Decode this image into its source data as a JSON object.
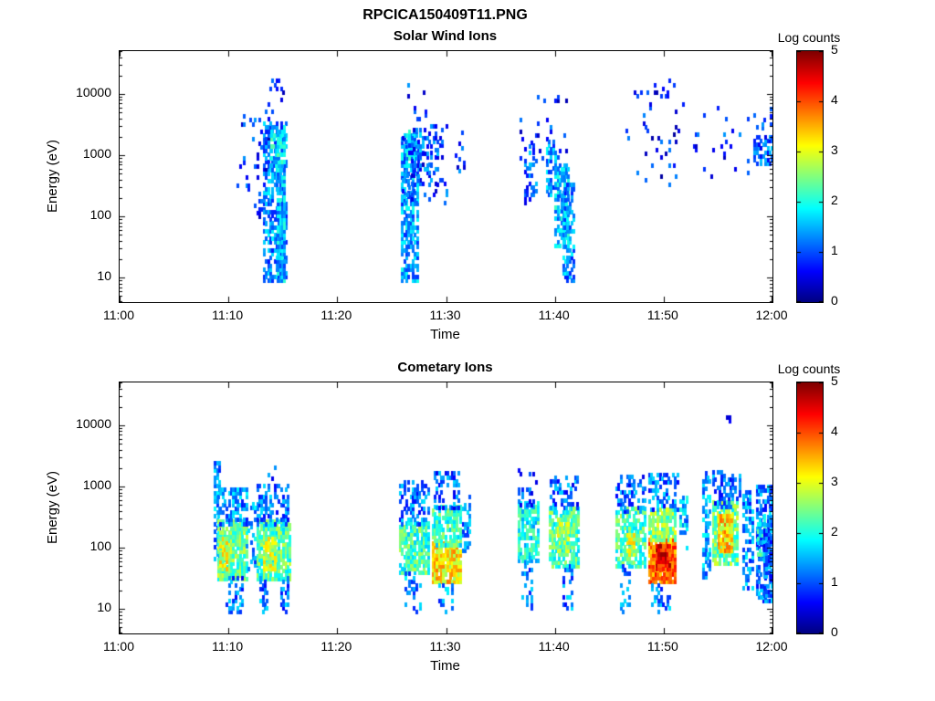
{
  "page": {
    "title": "RPCICA150409T11.PNG"
  },
  "colors": {
    "background": "#ffffff",
    "axis": "#000000",
    "text": "#000000"
  },
  "chart_data": [
    {
      "type": "heatmap",
      "title": "Solar Wind Ions",
      "xlabel": "Time",
      "ylabel": "Energy (eV)",
      "colorbar_label": "Log counts",
      "colormap": "jet",
      "color_range": [
        0,
        5
      ],
      "colorbar_ticks": [
        0,
        1,
        2,
        3,
        4,
        5
      ],
      "x_range_minutes": [
        0,
        60
      ],
      "x_tick_minutes": [
        0,
        10,
        20,
        30,
        40,
        50,
        60
      ],
      "x_tick_labels": [
        "11:00",
        "11:10",
        "11:20",
        "11:30",
        "11:40",
        "11:50",
        "12:00"
      ],
      "y_log_range": [
        4,
        50000
      ],
      "y_tick_values": [
        10,
        100,
        1000,
        10000
      ],
      "y_tick_labels": [
        "10",
        "100",
        "1000",
        "10000"
      ],
      "grid": false,
      "regions_format": "t=[start,end] minutes after 11:00, e=[min,max] eV, v=mean log10 counts, d=fill fraction of bins",
      "regions": [
        {
          "t": [
            10.6,
            13.6
          ],
          "e": [
            250,
            4000
          ],
          "v": 0.8,
          "d": 0.1
        },
        {
          "t": [
            12.4,
            13.4
          ],
          "e": [
            50,
            250
          ],
          "v": 0.9,
          "d": 0.15
        },
        {
          "t": [
            13.2,
            15.3
          ],
          "e": [
            8,
            3000
          ],
          "v": 1.3,
          "d": 0.55
        },
        {
          "t": [
            14.5,
            15.2
          ],
          "e": [
            8,
            2500
          ],
          "v": 1.5,
          "d": 0.85
        },
        {
          "t": [
            13.9,
            15.2
          ],
          "e": [
            600,
            2800
          ],
          "v": 1.8,
          "d": 0.6
        },
        {
          "t": [
            13.4,
            15.3
          ],
          "e": [
            3000,
            15000
          ],
          "v": 0.8,
          "d": 0.12
        },
        {
          "t": [
            25.9,
            27.3
          ],
          "e": [
            8,
            2000
          ],
          "v": 1.4,
          "d": 0.75
        },
        {
          "t": [
            26.2,
            27.6
          ],
          "e": [
            800,
            2300
          ],
          "v": 1.7,
          "d": 0.5
        },
        {
          "t": [
            26.0,
            30.2
          ],
          "e": [
            150,
            3000
          ],
          "v": 0.9,
          "d": 0.15
        },
        {
          "t": [
            26.3,
            28.6
          ],
          "e": [
            3000,
            13000
          ],
          "v": 0.8,
          "d": 0.1
        },
        {
          "t": [
            27.4,
            29.3
          ],
          "e": [
            300,
            2000
          ],
          "v": 1.1,
          "d": 0.3
        },
        {
          "t": [
            30.8,
            31.6
          ],
          "e": [
            500,
            2200
          ],
          "v": 0.9,
          "d": 0.15
        },
        {
          "t": [
            37.2,
            38.3
          ],
          "e": [
            150,
            1300
          ],
          "v": 1.1,
          "d": 0.4
        },
        {
          "t": [
            36.8,
            41.4
          ],
          "e": [
            800,
            10000
          ],
          "v": 0.8,
          "d": 0.09
        },
        {
          "t": [
            39.2,
            40.3
          ],
          "e": [
            200,
            1600
          ],
          "v": 1.3,
          "d": 0.55
        },
        {
          "t": [
            40.0,
            41.3
          ],
          "e": [
            30,
            700
          ],
          "v": 1.6,
          "d": 0.65
        },
        {
          "t": [
            40.7,
            41.9
          ],
          "e": [
            8,
            300
          ],
          "v": 1.3,
          "d": 0.5
        },
        {
          "t": [
            46.5,
            51.8
          ],
          "e": [
            300,
            15000
          ],
          "v": 0.7,
          "d": 0.045
        },
        {
          "t": [
            52.5,
            58.6
          ],
          "e": [
            400,
            6000
          ],
          "v": 0.8,
          "d": 0.055
        },
        {
          "t": [
            58.3,
            60.0
          ],
          "e": [
            650,
            2000
          ],
          "v": 1.1,
          "d": 0.55
        },
        {
          "t": [
            59.0,
            60.0
          ],
          "e": [
            2500,
            5200
          ],
          "v": 0.8,
          "d": 0.18
        }
      ]
    },
    {
      "type": "heatmap",
      "title": "Cometary Ions",
      "xlabel": "Time",
      "ylabel": "Energy (eV)",
      "colorbar_label": "Log counts",
      "colormap": "jet",
      "color_range": [
        0,
        5
      ],
      "colorbar_ticks": [
        0,
        1,
        2,
        3,
        4,
        5
      ],
      "x_range_minutes": [
        0,
        60
      ],
      "x_tick_minutes": [
        0,
        10,
        20,
        30,
        40,
        50,
        60
      ],
      "x_tick_labels": [
        "11:00",
        "11:10",
        "11:20",
        "11:30",
        "11:40",
        "11:50",
        "12:00"
      ],
      "y_log_range": [
        4,
        50000
      ],
      "y_tick_values": [
        10,
        100,
        1000,
        10000
      ],
      "y_tick_labels": [
        "10",
        "100",
        "1000",
        "10000"
      ],
      "grid": false,
      "regions_format": "t=[start,end] minutes after 11:00, e=[min,max] eV, v=mean log10 counts, d=fill fraction of bins",
      "regions": [
        {
          "t": [
            8.7,
            9.2
          ],
          "e": [
            60,
            2300
          ],
          "v": 1.3,
          "d": 0.55
        },
        {
          "t": [
            9.0,
            11.6
          ],
          "e": [
            28,
            260
          ],
          "v": 2.4,
          "d": 0.85
        },
        {
          "t": [
            9.2,
            9.9
          ],
          "e": [
            40,
            130
          ],
          "v": 2.9,
          "d": 0.9
        },
        {
          "t": [
            9.0,
            11.6
          ],
          "e": [
            220,
            900
          ],
          "v": 1.3,
          "d": 0.5
        },
        {
          "t": [
            9.8,
            11.2
          ],
          "e": [
            8,
            30
          ],
          "v": 1.2,
          "d": 0.35
        },
        {
          "t": [
            11.6,
            12.6
          ],
          "e": [
            40,
            500
          ],
          "v": 1.4,
          "d": 0.25
        },
        {
          "t": [
            12.6,
            15.6
          ],
          "e": [
            28,
            260
          ],
          "v": 2.3,
          "d": 0.85
        },
        {
          "t": [
            13.2,
            14.3
          ],
          "e": [
            40,
            140
          ],
          "v": 2.8,
          "d": 0.9
        },
        {
          "t": [
            12.6,
            15.4
          ],
          "e": [
            220,
            1000
          ],
          "v": 1.2,
          "d": 0.5
        },
        {
          "t": [
            13.6,
            14.2
          ],
          "e": [
            900,
            2100
          ],
          "v": 1.0,
          "d": 0.3
        },
        {
          "t": [
            12.9,
            13.5
          ],
          "e": [
            8,
            30
          ],
          "v": 1.2,
          "d": 0.4
        },
        {
          "t": [
            14.8,
            15.5
          ],
          "e": [
            8,
            30
          ],
          "v": 1.2,
          "d": 0.4
        },
        {
          "t": [
            25.7,
            28.4
          ],
          "e": [
            35,
            260
          ],
          "v": 2.2,
          "d": 0.8
        },
        {
          "t": [
            25.7,
            28.4
          ],
          "e": [
            220,
            1200
          ],
          "v": 1.2,
          "d": 0.45
        },
        {
          "t": [
            26.2,
            27.6
          ],
          "e": [
            8,
            35
          ],
          "v": 1.3,
          "d": 0.35
        },
        {
          "t": [
            28.7,
            31.4
          ],
          "e": [
            25,
            110
          ],
          "v": 3.2,
          "d": 0.92
        },
        {
          "t": [
            28.7,
            31.4
          ],
          "e": [
            100,
            450
          ],
          "v": 2.1,
          "d": 0.75
        },
        {
          "t": [
            28.9,
            31.2
          ],
          "e": [
            400,
            1500
          ],
          "v": 1.1,
          "d": 0.4
        },
        {
          "t": [
            29.3,
            30.6
          ],
          "e": [
            8,
            25
          ],
          "v": 1.3,
          "d": 0.35
        },
        {
          "t": [
            31.5,
            32.2
          ],
          "e": [
            80,
            600
          ],
          "v": 1.2,
          "d": 0.35
        },
        {
          "t": [
            36.6,
            38.5
          ],
          "e": [
            55,
            550
          ],
          "v": 1.9,
          "d": 0.7
        },
        {
          "t": [
            36.6,
            38.3
          ],
          "e": [
            450,
            1800
          ],
          "v": 1.0,
          "d": 0.35
        },
        {
          "t": [
            37.0,
            38.0
          ],
          "e": [
            8,
            55
          ],
          "v": 1.2,
          "d": 0.3
        },
        {
          "t": [
            39.5,
            42.3
          ],
          "e": [
            45,
            450
          ],
          "v": 2.2,
          "d": 0.75
        },
        {
          "t": [
            40.2,
            41.3
          ],
          "e": [
            70,
            260
          ],
          "v": 2.7,
          "d": 0.8
        },
        {
          "t": [
            39.6,
            42.2
          ],
          "e": [
            400,
            1400
          ],
          "v": 1.1,
          "d": 0.4
        },
        {
          "t": [
            40.7,
            41.6
          ],
          "e": [
            8,
            45
          ],
          "v": 1.2,
          "d": 0.35
        },
        {
          "t": [
            45.6,
            48.4
          ],
          "e": [
            45,
            420
          ],
          "v": 2.2,
          "d": 0.78
        },
        {
          "t": [
            46.6,
            47.4
          ],
          "e": [
            70,
            160
          ],
          "v": 2.9,
          "d": 0.85
        },
        {
          "t": [
            45.6,
            48.4
          ],
          "e": [
            350,
            1300
          ],
          "v": 1.1,
          "d": 0.42
        },
        {
          "t": [
            46.0,
            47.0
          ],
          "e": [
            8,
            45
          ],
          "v": 1.2,
          "d": 0.3
        },
        {
          "t": [
            48.6,
            51.2
          ],
          "e": [
            25,
            130
          ],
          "v": 3.8,
          "d": 0.95
        },
        {
          "t": [
            49.3,
            50.7
          ],
          "e": [
            40,
            100
          ],
          "v": 4.3,
          "d": 0.95
        },
        {
          "t": [
            48.6,
            51.2
          ],
          "e": [
            120,
            420
          ],
          "v": 2.5,
          "d": 0.8
        },
        {
          "t": [
            48.6,
            51.3
          ],
          "e": [
            380,
            1400
          ],
          "v": 1.2,
          "d": 0.4
        },
        {
          "t": [
            48.9,
            50.6
          ],
          "e": [
            8,
            25
          ],
          "v": 1.3,
          "d": 0.35
        },
        {
          "t": [
            51.5,
            52.3
          ],
          "e": [
            90,
            600
          ],
          "v": 1.5,
          "d": 0.4
        },
        {
          "t": [
            53.6,
            54.3
          ],
          "e": [
            30,
            1500
          ],
          "v": 1.4,
          "d": 0.5
        },
        {
          "t": [
            54.5,
            56.9
          ],
          "e": [
            50,
            520
          ],
          "v": 2.4,
          "d": 0.8
        },
        {
          "t": [
            55.0,
            56.4
          ],
          "e": [
            80,
            300
          ],
          "v": 3.3,
          "d": 0.88
        },
        {
          "t": [
            54.5,
            57.0
          ],
          "e": [
            420,
            1600
          ],
          "v": 1.1,
          "d": 0.4
        },
        {
          "t": [
            55.8,
            56.2
          ],
          "e": [
            10500,
            14000
          ],
          "v": 0.9,
          "d": 0.5
        },
        {
          "t": [
            57.3,
            58.3
          ],
          "e": [
            20,
            800
          ],
          "v": 1.3,
          "d": 0.5
        },
        {
          "t": [
            58.5,
            60.0
          ],
          "e": [
            12,
            900
          ],
          "v": 1.2,
          "d": 0.6
        },
        {
          "t": [
            58.6,
            59.4
          ],
          "e": [
            70,
            300
          ],
          "v": 1.9,
          "d": 0.6
        },
        {
          "t": [
            59.2,
            60.0
          ],
          "e": [
            15,
            200
          ],
          "v": 1.1,
          "d": 0.75
        }
      ]
    }
  ]
}
